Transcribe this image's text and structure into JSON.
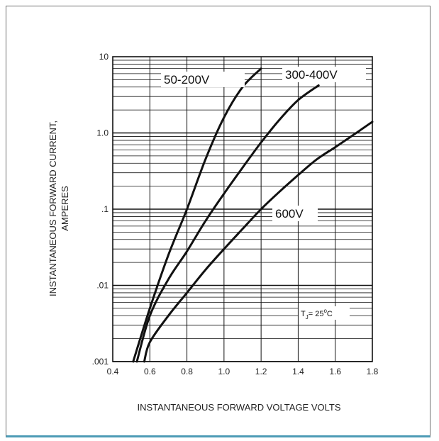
{
  "chart_data": {
    "type": "line",
    "title": "",
    "xlabel": "INSTANTANEOUS FORWARD VOLTAGE VOLTS",
    "ylabel_lines": [
      "INSTANTANEOUS FORWARD CURRENT,",
      "AMPERES"
    ],
    "xlim": [
      0.4,
      1.8
    ],
    "ylim": [
      0.001,
      10
    ],
    "yscale": "log",
    "grid": true,
    "x_ticks": [
      0.4,
      0.6,
      0.8,
      1.0,
      1.2,
      1.4,
      1.6,
      1.8
    ],
    "x_tick_labels": [
      "0.4",
      "0.6",
      "0.8",
      "1.0",
      "1.2",
      "1.4",
      "1.6",
      "1.8"
    ],
    "y_ticks": [
      0.001,
      0.01,
      0.1,
      1,
      10
    ],
    "y_tick_labels": [
      ".001",
      ".01",
      ".1",
      "1.0",
      "10"
    ],
    "series": [
      {
        "name": "50-200V",
        "x": [
          0.51,
          0.6,
          0.7,
          0.8,
          0.9,
          1.0,
          1.1,
          1.2
        ],
        "y": [
          0.001,
          0.005,
          0.025,
          0.1,
          0.45,
          1.6,
          4.0,
          7.0
        ]
      },
      {
        "name": "300-400V",
        "x": [
          0.53,
          0.6,
          0.7,
          0.8,
          0.9,
          1.0,
          1.1,
          1.2,
          1.3,
          1.4,
          1.51
        ],
        "y": [
          0.001,
          0.004,
          0.012,
          0.028,
          0.07,
          0.16,
          0.35,
          0.75,
          1.5,
          2.7,
          4.2
        ]
      },
      {
        "name": "600V",
        "x": [
          0.57,
          0.6,
          0.7,
          0.8,
          0.9,
          1.0,
          1.1,
          1.2,
          1.3,
          1.4,
          1.5,
          1.6,
          1.7,
          1.8
        ],
        "y": [
          0.001,
          0.0018,
          0.004,
          0.008,
          0.016,
          0.03,
          0.055,
          0.1,
          0.17,
          0.28,
          0.45,
          0.65,
          0.95,
          1.4
        ]
      }
    ],
    "annotation": {
      "prefix": "T",
      "subscript": "J",
      "text": "= 25",
      "superscript": "o",
      "suffix": "C"
    }
  }
}
